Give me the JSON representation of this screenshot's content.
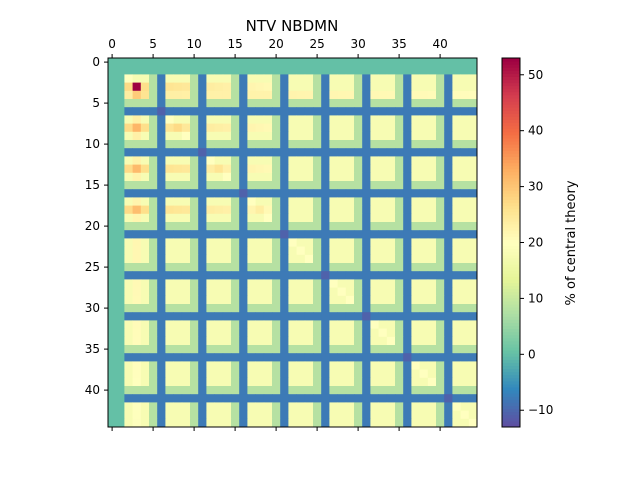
{
  "chart_data": {
    "type": "heatmap",
    "title": "NTV NBDMN",
    "colorbar_label": "% of central theory",
    "n_rows": 45,
    "n_cols": 45,
    "x_ticks": [
      0,
      5,
      10,
      15,
      20,
      25,
      30,
      35,
      40
    ],
    "y_ticks": [
      0,
      5,
      10,
      15,
      20,
      25,
      30,
      35,
      40
    ],
    "colorbar_ticks": [
      -10,
      0,
      10,
      20,
      30,
      40,
      50
    ],
    "value_range": [
      -13,
      53
    ],
    "colormap": "Spectral_r",
    "x_axis_position": "top",
    "pattern": {
      "zero_rows_cols": [
        0,
        1
      ],
      "negative_period": 5,
      "negative_phase": 1,
      "negative_value": -8,
      "mid_phase": 0,
      "mid_value": 8,
      "base_value": 18,
      "peak_cell": [
        3,
        3
      ],
      "peak_value": 53
    }
  }
}
